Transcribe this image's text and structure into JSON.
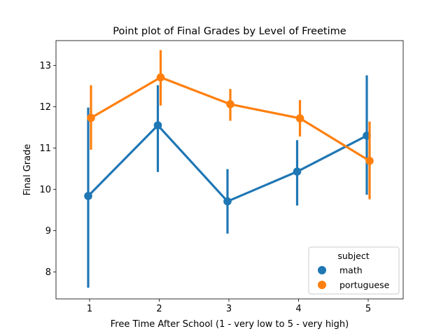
{
  "chart_data": {
    "type": "point",
    "title": "Point plot of Final Grades by Level of Freetime",
    "xlabel": "Free Time After School (1 - very low to 5 - very high)",
    "ylabel": "Final Grade",
    "categories": [
      "1",
      "2",
      "3",
      "4",
      "5"
    ],
    "ylim": [
      7.35,
      13.6
    ],
    "yticks": [
      8,
      9,
      10,
      11,
      12,
      13
    ],
    "grid": false,
    "legend": {
      "title": "subject",
      "placement": "lower-right"
    },
    "series": [
      {
        "name": "math",
        "color": "#1f77b4",
        "values": [
          9.84,
          11.55,
          9.71,
          10.43,
          11.3
        ],
        "ci_low": [
          7.62,
          10.42,
          8.93,
          9.61,
          9.87
        ],
        "ci_high": [
          11.98,
          12.52,
          10.49,
          11.19,
          12.76
        ]
      },
      {
        "name": "portuguese",
        "color": "#ff7f0e",
        "values": [
          11.73,
          12.71,
          12.06,
          11.72,
          10.69
        ],
        "ci_low": [
          10.96,
          12.03,
          11.66,
          11.28,
          9.76
        ],
        "ci_high": [
          12.52,
          13.37,
          12.43,
          12.16,
          11.64
        ]
      }
    ]
  }
}
